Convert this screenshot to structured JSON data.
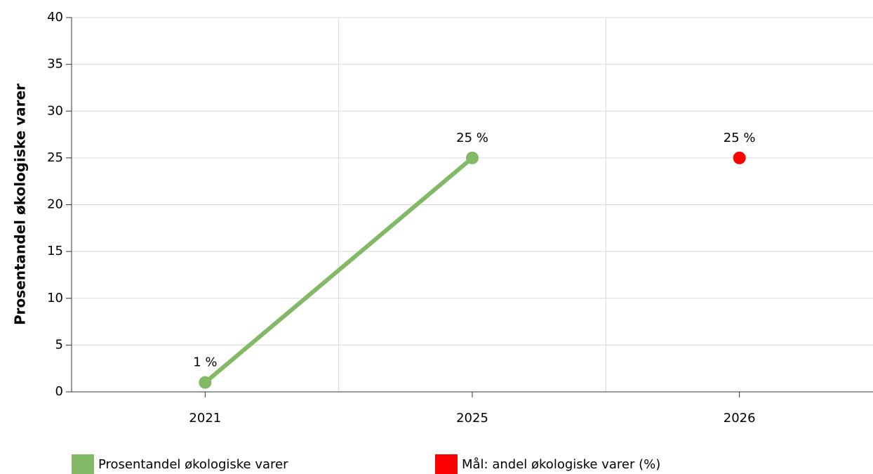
{
  "chart_data": {
    "type": "line",
    "y_label": "Prosentandel økologiske varer",
    "categories": [
      "2021",
      "2025",
      "2026"
    ],
    "series": [
      {
        "name": "Prosentandel økologiske varer",
        "color": "#82b866",
        "values": [
          1,
          25,
          null
        ],
        "value_labels": [
          "1 %",
          "25 %",
          null
        ]
      },
      {
        "name": "Mål: andel økologiske varer (%)",
        "color": "#ff0000",
        "values": [
          null,
          null,
          25
        ],
        "value_labels": [
          null,
          null,
          "25 %"
        ]
      }
    ],
    "ylim": [
      0,
      40
    ],
    "yticks": [
      0,
      5,
      10,
      15,
      20,
      25,
      30,
      35,
      40
    ],
    "grid": true,
    "legend": "bottom"
  }
}
